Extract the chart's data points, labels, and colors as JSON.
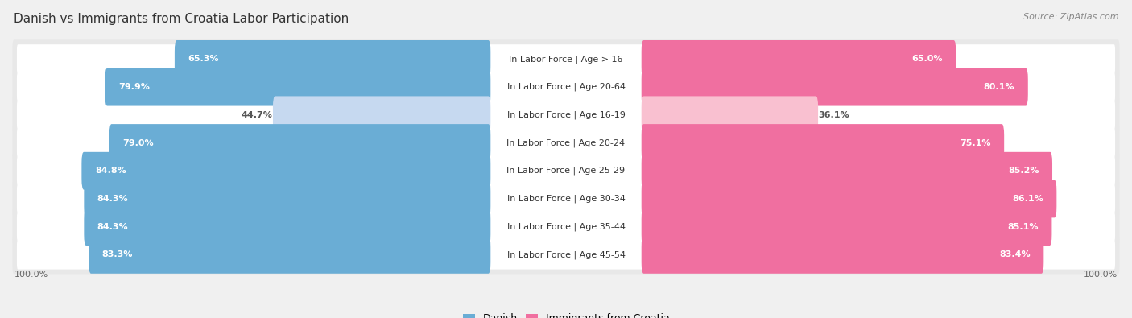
{
  "title": "Danish vs Immigrants from Croatia Labor Participation",
  "source": "Source: ZipAtlas.com",
  "categories": [
    "In Labor Force | Age > 16",
    "In Labor Force | Age 20-64",
    "In Labor Force | Age 16-19",
    "In Labor Force | Age 20-24",
    "In Labor Force | Age 25-29",
    "In Labor Force | Age 30-34",
    "In Labor Force | Age 35-44",
    "In Labor Force | Age 45-54"
  ],
  "danish_values": [
    65.3,
    79.9,
    44.7,
    79.0,
    84.8,
    84.3,
    84.3,
    83.3
  ],
  "croatia_values": [
    65.0,
    80.1,
    36.1,
    75.1,
    85.2,
    86.1,
    85.1,
    83.4
  ],
  "max_value": 100.0,
  "danish_color_strong": "#6aadd5",
  "danish_color_light": "#c6d9f0",
  "croatia_color_strong": "#f06fa0",
  "croatia_color_light": "#f9c0d0",
  "threshold_strong": 60.0,
  "bg_color": "#f0f0f0",
  "row_bg": "#e8e8e8",
  "bar_bg": "#ffffff",
  "label_fontsize": 8,
  "value_fontsize": 8,
  "title_fontsize": 11,
  "source_fontsize": 8,
  "legend_fontsize": 9
}
